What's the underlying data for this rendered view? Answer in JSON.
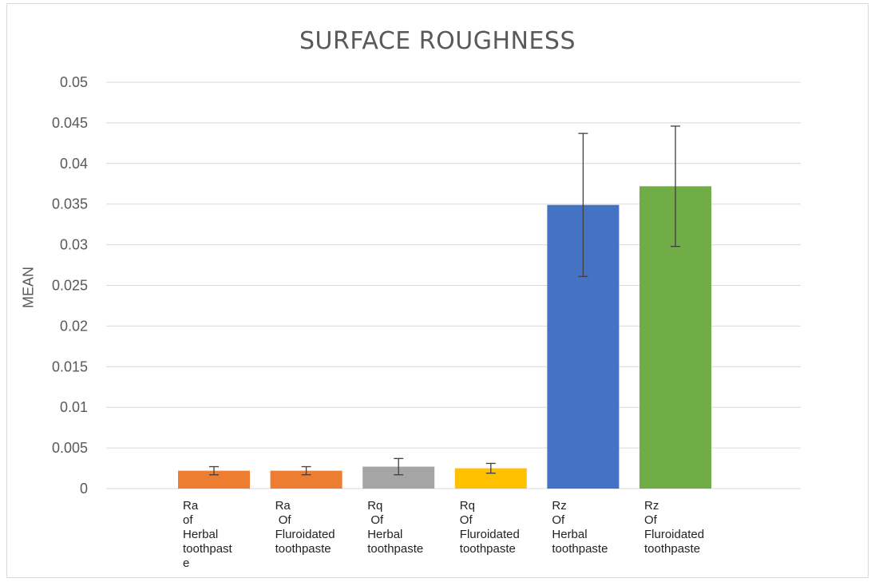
{
  "chart_data": {
    "type": "bar",
    "title": "SURFACE ROUGHNESS",
    "xlabel": "",
    "ylabel": "MEAN",
    "ylim": [
      0,
      0.05
    ],
    "yticks": [
      "0.05",
      "0.045",
      "0.04",
      "0.035",
      "0.03",
      "0.025",
      "0.02",
      "0.015",
      "0.01",
      "0.005",
      "0"
    ],
    "grid": true,
    "categories": [
      [
        "Ra",
        "of",
        "Herbal",
        "toothpast",
        "e"
      ],
      [
        "Ra",
        " Of",
        "Fluroidated",
        "toothpaste"
      ],
      [
        "Rq",
        " Of",
        "Herbal",
        "toothpaste"
      ],
      [
        "Rq",
        "Of",
        "Fluroidated",
        "toothpaste"
      ],
      [
        "Rz",
        "Of",
        "Herbal",
        "toothpaste"
      ],
      [
        "Rz",
        "Of",
        "Fluroidated",
        "toothpaste"
      ]
    ],
    "values": [
      0.0022,
      0.0022,
      0.0027,
      0.0025,
      0.0349,
      0.0372
    ],
    "errors": [
      0.0005,
      0.0005,
      0.001,
      0.0006,
      0.0088,
      0.0074
    ],
    "colors": [
      "#ED7D31",
      "#ED7D31",
      "#A5A5A5",
      "#FFC000",
      "#4472C4",
      "#70AD47"
    ]
  }
}
